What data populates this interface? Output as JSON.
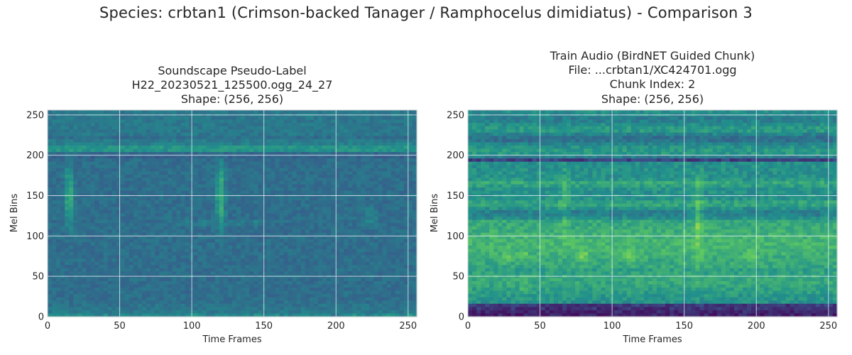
{
  "figure": {
    "suptitle": "Species: crbtan1 (Crimson-backed Tanager / Ramphocelus dimidiatus) - Comparison 3",
    "colormap": [
      "#440154",
      "#3b528b",
      "#21918c",
      "#5ec962",
      "#fde725"
    ]
  },
  "chart_data": [
    {
      "type": "heatmap",
      "title_lines": [
        "Soundscape Pseudo-Label",
        "H22_20230521_125500.ogg_24_27",
        "Shape: (256, 256)"
      ],
      "xlabel": "Time Frames",
      "ylabel": "Mel Bins",
      "xlim": [
        0,
        256
      ],
      "ylim": [
        0,
        256
      ],
      "xticks": [
        0,
        50,
        100,
        150,
        200,
        250
      ],
      "yticks": [
        0,
        50,
        100,
        150,
        200,
        250
      ],
      "grid": true
    },
    {
      "type": "heatmap",
      "title_lines": [
        "Train Audio (BirdNET Guided Chunk)",
        "File: ...crbtan1/XC424701.ogg",
        "Chunk Index: 2",
        "Shape: (256, 256)"
      ],
      "xlabel": "Time Frames",
      "ylabel": "Mel Bins",
      "xlim": [
        0,
        256
      ],
      "ylim": [
        0,
        256
      ],
      "xticks": [
        0,
        50,
        100,
        150,
        200,
        250
      ],
      "yticks": [
        0,
        50,
        100,
        150,
        200,
        250
      ],
      "grid": true
    }
  ]
}
